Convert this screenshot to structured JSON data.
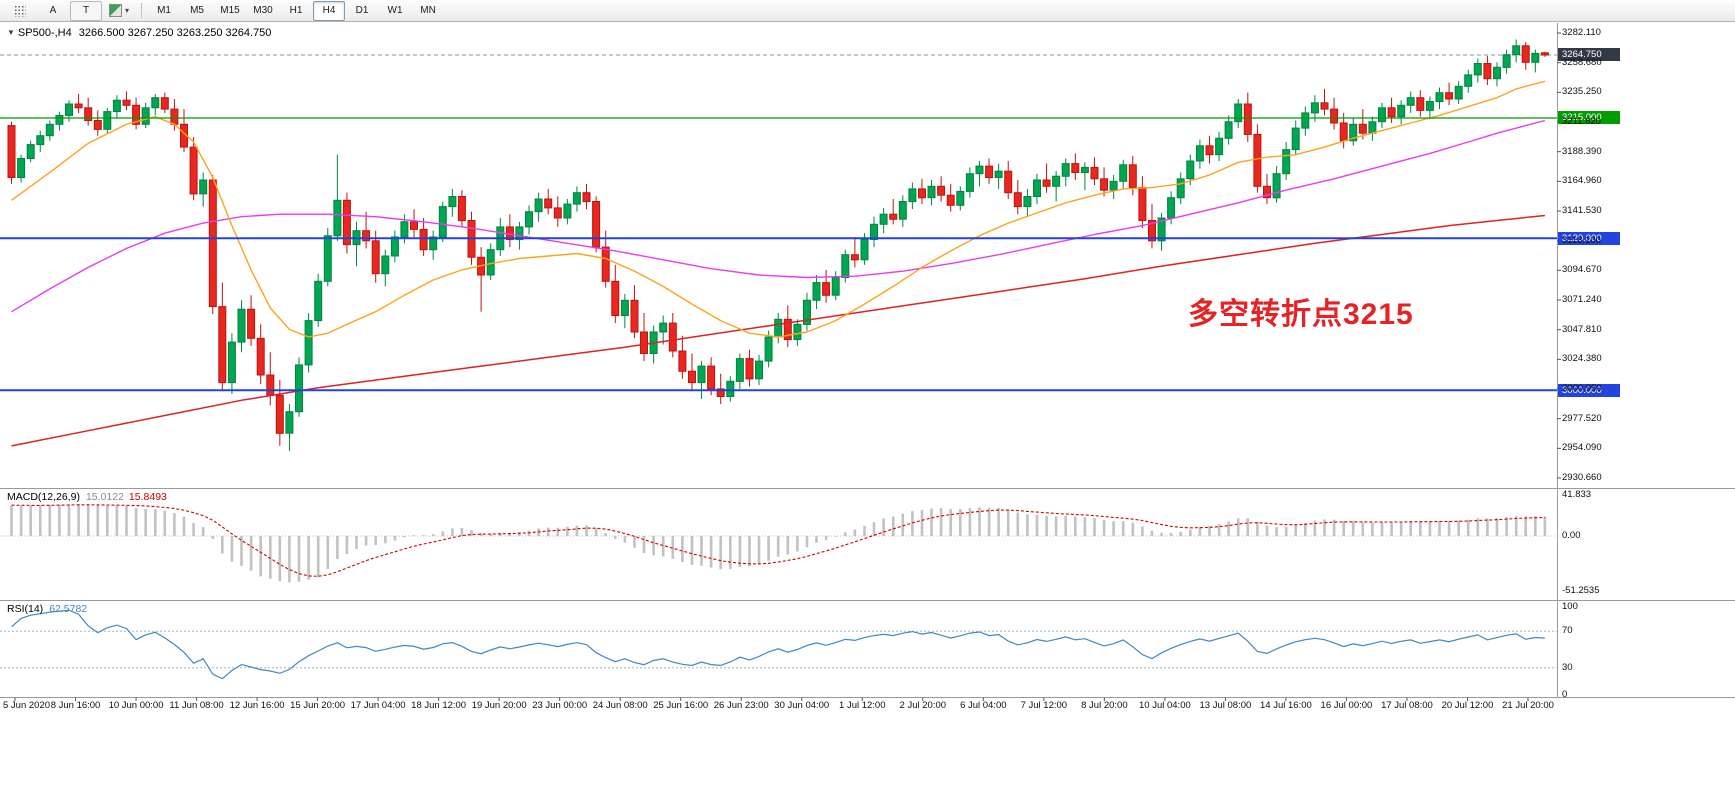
{
  "icons": {
    "symbol_marker": "▼",
    "dropdown_caret": "▾"
  },
  "toolbar": {
    "a_label": "A",
    "t_label": "T",
    "timeframes": [
      "M1",
      "M5",
      "M15",
      "M30",
      "H1",
      "H4",
      "D1",
      "W1",
      "MN"
    ],
    "active_timeframe": "H4"
  },
  "chart": {
    "title": "SP500-,H4",
    "ohlc": "3266.500 3267.250 3263.250 3264.750",
    "annotation": {
      "text": "多空转折点3215",
      "color": "#e62222"
    },
    "colors": {
      "candle_up": "#00a651",
      "candle_up_edge": "#00853f",
      "candle_down": "#e8271e",
      "candle_down_edge": "#bc1410",
      "ma_orange": "#ffa21f",
      "ma_magenta": "#e93cf0",
      "ma_red": "#dd2222",
      "macd_histogram": "#c2c2c2",
      "macd_signal": "#d40000",
      "rsi_line": "#3f87c9",
      "rsi_levels": "#9db8d2",
      "level_green": "#009c00",
      "level_blue": "#2244dd",
      "current_badge": "#333a46",
      "separator": "#9a9a9a"
    },
    "levels": {
      "current": {
        "price": 3264.75,
        "label": "3264.750",
        "color": "#333a46"
      },
      "green": {
        "price": 3215.0,
        "label": "3215.000",
        "color": "#009c00"
      },
      "blue_upper": {
        "price": 3120.0,
        "label": "3120.000",
        "color": "#2244dd"
      },
      "blue_lower": {
        "price": 3000.0,
        "label": "3000.000",
        "color": "#2244dd"
      }
    },
    "price_axis": {
      "top_price": 3282.11,
      "step": 23.43,
      "labels": [
        "3282.110",
        "3258.680",
        "3235.250",
        "3211.820",
        "3188.390",
        "3164.960",
        "3141.530",
        "3118.100",
        "3094.670",
        "3071.240",
        "3047.810",
        "3024.380",
        "3000.950",
        "2977.520",
        "2954.090",
        "2930.660"
      ]
    },
    "time_axis": {
      "labels": [
        "5 Jun 2020",
        "8 Jun 16:00",
        "10 Jun 00:00",
        "11 Jun 08:00",
        "12 Jun 16:00",
        "15 Jun 20:00",
        "17 Jun 04:00",
        "18 Jun 12:00",
        "19 Jun 20:00",
        "23 Jun 00:00",
        "24 Jun 08:00",
        "25 Jun 16:00",
        "26 Jun 23:00",
        "30 Jun 04:00",
        "1 Jul 12:00",
        "2 Jul 20:00",
        "6 Jul 04:00",
        "7 Jul 12:00",
        "8 Jul 20:00",
        "10 Jul 04:00",
        "13 Jul 08:00",
        "14 Jul 16:00",
        "16 Jul 00:00",
        "17 Jul 08:00",
        "20 Jul 12:00",
        "21 Jul 20:00"
      ]
    }
  },
  "chart_data": {
    "type": "candlestick",
    "symbol": "SP500-",
    "period": "H4",
    "title": "SP500-,H4 3266.500 3267.250 3263.250 3264.750",
    "ylim": [
      2930.66,
      3282.11
    ],
    "candles": [
      [
        3209,
        3212,
        3163,
        3168
      ],
      [
        3168,
        3186,
        3164,
        3183
      ],
      [
        3183,
        3197,
        3180,
        3194
      ],
      [
        3194,
        3205,
        3188,
        3201
      ],
      [
        3201,
        3213,
        3197,
        3210
      ],
      [
        3210,
        3220,
        3205,
        3217
      ],
      [
        3217,
        3229,
        3212,
        3226
      ],
      [
        3226,
        3234,
        3219,
        3223
      ],
      [
        3223,
        3231,
        3209,
        3213
      ],
      [
        3213,
        3221,
        3201,
        3206
      ],
      [
        3206,
        3223,
        3203,
        3220
      ],
      [
        3220,
        3233,
        3215,
        3229
      ],
      [
        3229,
        3236,
        3221,
        3225
      ],
      [
        3225,
        3231,
        3206,
        3210
      ],
      [
        3210,
        3227,
        3207,
        3223
      ],
      [
        3223,
        3234,
        3217,
        3231
      ],
      [
        3231,
        3235,
        3219,
        3222
      ],
      [
        3222,
        3230,
        3205,
        3210
      ],
      [
        3210,
        3222,
        3188,
        3192
      ],
      [
        3192,
        3200,
        3150,
        3155
      ],
      [
        3155,
        3172,
        3145,
        3166
      ],
      [
        3166,
        3170,
        3060,
        3066
      ],
      [
        3066,
        3085,
        2999,
        3006
      ],
      [
        3006,
        3045,
        2997,
        3038
      ],
      [
        3038,
        3071,
        3030,
        3064
      ],
      [
        3064,
        3075,
        3035,
        3041
      ],
      [
        3041,
        3052,
        3005,
        3012
      ],
      [
        3012,
        3030,
        2988,
        2996
      ],
      [
        2996,
        3008,
        2956,
        2966
      ],
      [
        2966,
        2989,
        2952,
        2983
      ],
      [
        2983,
        3026,
        2979,
        3020
      ],
      [
        3020,
        3061,
        3014,
        3055
      ],
      [
        3055,
        3092,
        3050,
        3086
      ],
      [
        3086,
        3128,
        3082,
        3122
      ],
      [
        3122,
        3186,
        3118,
        3150
      ],
      [
        3150,
        3156,
        3108,
        3115
      ],
      [
        3115,
        3133,
        3098,
        3126
      ],
      [
        3126,
        3141,
        3112,
        3118
      ],
      [
        3118,
        3126,
        3085,
        3092
      ],
      [
        3092,
        3111,
        3082,
        3106
      ],
      [
        3106,
        3126,
        3101,
        3121
      ],
      [
        3121,
        3139,
        3116,
        3133
      ],
      [
        3133,
        3143,
        3121,
        3127
      ],
      [
        3127,
        3136,
        3106,
        3111
      ],
      [
        3111,
        3126,
        3103,
        3121
      ],
      [
        3121,
        3149,
        3117,
        3145
      ],
      [
        3145,
        3159,
        3137,
        3153
      ],
      [
        3153,
        3158,
        3129,
        3134
      ],
      [
        3134,
        3141,
        3099,
        3105
      ],
      [
        3105,
        3113,
        3062,
        3091
      ],
      [
        3091,
        3116,
        3087,
        3111
      ],
      [
        3111,
        3136,
        3106,
        3129
      ],
      [
        3129,
        3139,
        3113,
        3119
      ],
      [
        3119,
        3133,
        3111,
        3129
      ],
      [
        3129,
        3146,
        3123,
        3141
      ],
      [
        3141,
        3156,
        3133,
        3151
      ],
      [
        3151,
        3159,
        3139,
        3144
      ],
      [
        3144,
        3153,
        3129,
        3136
      ],
      [
        3136,
        3151,
        3131,
        3147
      ],
      [
        3147,
        3161,
        3141,
        3156
      ],
      [
        3156,
        3163,
        3143,
        3149
      ],
      [
        3149,
        3153,
        3109,
        3113
      ],
      [
        3113,
        3126,
        3081,
        3086
      ],
      [
        3086,
        3099,
        3053,
        3059
      ],
      [
        3059,
        3076,
        3049,
        3071
      ],
      [
        3071,
        3083,
        3041,
        3046
      ],
      [
        3046,
        3061,
        3023,
        3029
      ],
      [
        3029,
        3051,
        3021,
        3046
      ],
      [
        3046,
        3059,
        3036,
        3053
      ],
      [
        3053,
        3061,
        3026,
        3031
      ],
      [
        3031,
        3043,
        3009,
        3015
      ],
      [
        3015,
        3029,
        2999,
        3006
      ],
      [
        3006,
        3023,
        2993,
        3019
      ],
      [
        3019,
        3026,
        2996,
        3001
      ],
      [
        3001,
        3013,
        2989,
        2995
      ],
      [
        2995,
        3011,
        2991,
        3007
      ],
      [
        3007,
        3029,
        3001,
        3025
      ],
      [
        3025,
        3032,
        3003,
        3009
      ],
      [
        3009,
        3028,
        3004,
        3023
      ],
      [
        3023,
        3047,
        3018,
        3042
      ],
      [
        3042,
        3061,
        3037,
        3056
      ],
      [
        3056,
        3067,
        3034,
        3040
      ],
      [
        3040,
        3056,
        3035,
        3052
      ],
      [
        3052,
        3077,
        3047,
        3071
      ],
      [
        3071,
        3091,
        3064,
        3085
      ],
      [
        3085,
        3095,
        3069,
        3075
      ],
      [
        3075,
        3094,
        3071,
        3089
      ],
      [
        3089,
        3111,
        3085,
        3107
      ],
      [
        3107,
        3121,
        3097,
        3103
      ],
      [
        3103,
        3124,
        3099,
        3119
      ],
      [
        3119,
        3137,
        3113,
        3131
      ],
      [
        3131,
        3144,
        3124,
        3139
      ],
      [
        3139,
        3151,
        3131,
        3135
      ],
      [
        3135,
        3154,
        3129,
        3149
      ],
      [
        3149,
        3164,
        3143,
        3159
      ],
      [
        3159,
        3167,
        3147,
        3152
      ],
      [
        3152,
        3166,
        3146,
        3161
      ],
      [
        3161,
        3169,
        3149,
        3154
      ],
      [
        3154,
        3163,
        3141,
        3146
      ],
      [
        3146,
        3161,
        3142,
        3157
      ],
      [
        3157,
        3176,
        3152,
        3171
      ],
      [
        3171,
        3181,
        3161,
        3177
      ],
      [
        3177,
        3183,
        3163,
        3168
      ],
      [
        3168,
        3179,
        3159,
        3173
      ],
      [
        3173,
        3181,
        3151,
        3156
      ],
      [
        3156,
        3166,
        3139,
        3145
      ],
      [
        3145,
        3159,
        3137,
        3153
      ],
      [
        3153,
        3171,
        3147,
        3166
      ],
      [
        3166,
        3179,
        3156,
        3161
      ],
      [
        3161,
        3173,
        3149,
        3169
      ],
      [
        3169,
        3183,
        3161,
        3179
      ],
      [
        3179,
        3187,
        3166,
        3172
      ],
      [
        3172,
        3180,
        3158,
        3176
      ],
      [
        3176,
        3184,
        3162,
        3167
      ],
      [
        3167,
        3176,
        3153,
        3158
      ],
      [
        3158,
        3170,
        3151,
        3165
      ],
      [
        3165,
        3182,
        3159,
        3178
      ],
      [
        3178,
        3185,
        3154,
        3160
      ],
      [
        3160,
        3169,
        3128,
        3134
      ],
      [
        3134,
        3147,
        3112,
        3118
      ],
      [
        3118,
        3140,
        3110,
        3136
      ],
      [
        3136,
        3157,
        3131,
        3152
      ],
      [
        3152,
        3172,
        3147,
        3167
      ],
      [
        3167,
        3186,
        3162,
        3181
      ],
      [
        3181,
        3198,
        3175,
        3193
      ],
      [
        3193,
        3201,
        3179,
        3186
      ],
      [
        3186,
        3204,
        3181,
        3199
      ],
      [
        3199,
        3217,
        3194,
        3212
      ],
      [
        3212,
        3230,
        3207,
        3226
      ],
      [
        3226,
        3235,
        3196,
        3202
      ],
      [
        3202,
        3210,
        3156,
        3161
      ],
      [
        3161,
        3171,
        3147,
        3152
      ],
      [
        3152,
        3177,
        3148,
        3171
      ],
      [
        3171,
        3196,
        3166,
        3190
      ],
      [
        3190,
        3213,
        3186,
        3207
      ],
      [
        3207,
        3224,
        3201,
        3219
      ],
      [
        3219,
        3233,
        3212,
        3227
      ],
      [
        3227,
        3238,
        3217,
        3222
      ],
      [
        3222,
        3231,
        3206,
        3211
      ],
      [
        3211,
        3219,
        3191,
        3197
      ],
      [
        3197,
        3215,
        3193,
        3210
      ],
      [
        3210,
        3222,
        3198,
        3203
      ],
      [
        3203,
        3216,
        3197,
        3212
      ],
      [
        3212,
        3227,
        3207,
        3223
      ],
      [
        3223,
        3231,
        3211,
        3216
      ],
      [
        3216,
        3229,
        3210,
        3225
      ],
      [
        3225,
        3236,
        3219,
        3231
      ],
      [
        3231,
        3237,
        3216,
        3221
      ],
      [
        3221,
        3232,
        3214,
        3228
      ],
      [
        3228,
        3239,
        3222,
        3235
      ],
      [
        3235,
        3243,
        3225,
        3230
      ],
      [
        3230,
        3244,
        3226,
        3240
      ],
      [
        3240,
        3253,
        3235,
        3249
      ],
      [
        3249,
        3262,
        3243,
        3258
      ],
      [
        3258,
        3264,
        3241,
        3246
      ],
      [
        3246,
        3259,
        3240,
        3255
      ],
      [
        3255,
        3269,
        3250,
        3265
      ],
      [
        3265,
        3277,
        3259,
        3272
      ],
      [
        3272,
        3275,
        3253,
        3259
      ],
      [
        3259,
        3269,
        3251,
        3266
      ],
      [
        3266.5,
        3267.25,
        3263.25,
        3264.75
      ]
    ],
    "ma_orange": [
      [
        0,
        3150
      ],
      [
        4,
        3172
      ],
      [
        8,
        3195
      ],
      [
        12,
        3210
      ],
      [
        15,
        3216
      ],
      [
        17,
        3210
      ],
      [
        19,
        3196
      ],
      [
        21,
        3168
      ],
      [
        23,
        3130
      ],
      [
        25,
        3095
      ],
      [
        27,
        3065
      ],
      [
        29,
        3048
      ],
      [
        31,
        3042
      ],
      [
        33,
        3045
      ],
      [
        35,
        3052
      ],
      [
        38,
        3062
      ],
      [
        41,
        3075
      ],
      [
        44,
        3087
      ],
      [
        47,
        3095
      ],
      [
        50,
        3100
      ],
      [
        53,
        3104
      ],
      [
        56,
        3106
      ],
      [
        59,
        3108
      ],
      [
        62,
        3104
      ],
      [
        65,
        3094
      ],
      [
        68,
        3082
      ],
      [
        71,
        3068
      ],
      [
        74,
        3055
      ],
      [
        77,
        3045
      ],
      [
        80,
        3042
      ],
      [
        83,
        3046
      ],
      [
        86,
        3055
      ],
      [
        89,
        3068
      ],
      [
        92,
        3082
      ],
      [
        95,
        3097
      ],
      [
        98,
        3110
      ],
      [
        101,
        3122
      ],
      [
        104,
        3132
      ],
      [
        107,
        3140
      ],
      [
        110,
        3148
      ],
      [
        113,
        3154
      ],
      [
        116,
        3159
      ],
      [
        119,
        3160
      ],
      [
        122,
        3163
      ],
      [
        125,
        3170
      ],
      [
        128,
        3180
      ],
      [
        131,
        3184
      ],
      [
        134,
        3186
      ],
      [
        137,
        3192
      ],
      [
        140,
        3199
      ],
      [
        143,
        3205
      ],
      [
        146,
        3211
      ],
      [
        149,
        3217
      ],
      [
        152,
        3224
      ],
      [
        155,
        3231
      ],
      [
        157,
        3238
      ],
      [
        160,
        3244
      ]
    ],
    "ma_magenta": [
      [
        0,
        3062
      ],
      [
        4,
        3080
      ],
      [
        8,
        3097
      ],
      [
        12,
        3112
      ],
      [
        16,
        3124
      ],
      [
        20,
        3132
      ],
      [
        24,
        3137
      ],
      [
        28,
        3139
      ],
      [
        33,
        3139
      ],
      [
        38,
        3137
      ],
      [
        43,
        3133
      ],
      [
        48,
        3128
      ],
      [
        53,
        3122
      ],
      [
        58,
        3116
      ],
      [
        63,
        3110
      ],
      [
        68,
        3103
      ],
      [
        73,
        3096
      ],
      [
        78,
        3091
      ],
      [
        83,
        3089
      ],
      [
        88,
        3090
      ],
      [
        93,
        3094
      ],
      [
        98,
        3100
      ],
      [
        103,
        3107
      ],
      [
        108,
        3115
      ],
      [
        113,
        3123
      ],
      [
        118,
        3130
      ],
      [
        123,
        3139
      ],
      [
        128,
        3148
      ],
      [
        133,
        3158
      ],
      [
        138,
        3167
      ],
      [
        143,
        3177
      ],
      [
        148,
        3187
      ],
      [
        152,
        3196
      ],
      [
        155,
        3203
      ],
      [
        158,
        3209
      ],
      [
        160,
        3213
      ]
    ],
    "ma_red": [
      [
        0,
        2956
      ],
      [
        8,
        2968
      ],
      [
        16,
        2980
      ],
      [
        24,
        2992
      ],
      [
        32,
        3002
      ],
      [
        40,
        3010
      ],
      [
        48,
        3018
      ],
      [
        56,
        3026
      ],
      [
        64,
        3034
      ],
      [
        72,
        3043
      ],
      [
        80,
        3052
      ],
      [
        88,
        3061
      ],
      [
        96,
        3070
      ],
      [
        104,
        3079
      ],
      [
        112,
        3088
      ],
      [
        120,
        3098
      ],
      [
        128,
        3107
      ],
      [
        136,
        3116
      ],
      [
        144,
        3124
      ],
      [
        150,
        3130
      ],
      [
        155,
        3134
      ],
      [
        160,
        3138
      ]
    ]
  },
  "macd": {
    "label": "MACD(12,26,9)",
    "value_main": "15.0122",
    "value_signal": "15.8493",
    "params": {
      "fast": 12,
      "slow": 26,
      "signal": 9
    },
    "scale": [
      "41.833",
      "0.00",
      "-51.2535"
    ]
  },
  "rsi": {
    "label": "RSI(14)",
    "value": "62.5782",
    "period": 14,
    "scale": [
      "100",
      "70",
      "30",
      "0"
    ],
    "levels": [
      70,
      30
    ]
  }
}
